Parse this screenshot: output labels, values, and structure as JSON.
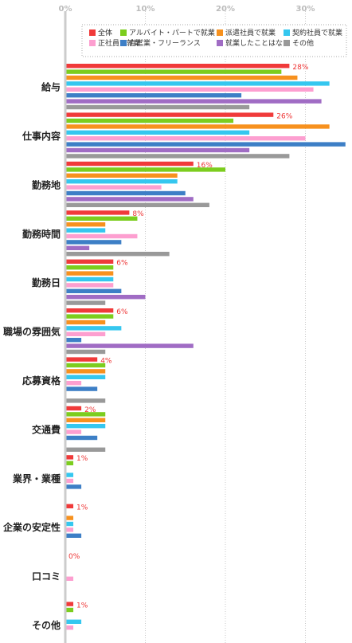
{
  "chart_data": {
    "type": "bar",
    "orientation": "horizontal",
    "title": "",
    "xlabel": "",
    "ylabel": "",
    "xlim": [
      0,
      35
    ],
    "ticks": [
      {
        "value": 0,
        "label": "0%"
      },
      {
        "value": 10,
        "label": "10%"
      },
      {
        "value": 20,
        "label": "20%"
      },
      {
        "value": 30,
        "label": "30%"
      }
    ],
    "grid": true,
    "legend_position": "top-right",
    "categories": [
      "給与",
      "仕事内容",
      "勤務地",
      "勤務時間",
      "勤務日",
      "職場の雰囲気",
      "応募資格",
      "交通費",
      "業界・業種",
      "企業の安定性",
      "口コミ",
      "その他"
    ],
    "data_labels": [
      "28%",
      "26%",
      "16%",
      "8%",
      "6%",
      "6%",
      "4%",
      "2%",
      "1%",
      "1%",
      "0%",
      "1%"
    ],
    "series": [
      {
        "name": "全体",
        "color": "#f03a3a",
        "values": [
          28,
          26,
          16,
          8,
          6,
          6,
          4,
          2,
          1,
          1,
          0,
          1
        ]
      },
      {
        "name": "アルバイト・パートで就業",
        "color": "#7ccd1e",
        "values": [
          27,
          21,
          20,
          9,
          6,
          6,
          5,
          5,
          1,
          0,
          0,
          1
        ]
      },
      {
        "name": "派遣社員で就業",
        "color": "#f7911e",
        "values": [
          29,
          33,
          14,
          5,
          6,
          5,
          5,
          5,
          0,
          1,
          0,
          0
        ]
      },
      {
        "name": "契約社員で就業",
        "color": "#35c7ef",
        "values": [
          33,
          23,
          14,
          5,
          6,
          7,
          5,
          5,
          1,
          1,
          0,
          2
        ]
      },
      {
        "name": "正社員で就業",
        "color": "#fd9fd0",
        "values": [
          31,
          30,
          12,
          9,
          6,
          5,
          2,
          2,
          1,
          1,
          1,
          1
        ]
      },
      {
        "name": "自営業・フリーランス",
        "color": "#3d7fc6",
        "values": [
          22,
          35,
          15,
          7,
          7,
          2,
          4,
          4,
          2,
          2,
          0,
          0
        ]
      },
      {
        "name": "就業したことはない",
        "color": "#a06cc4",
        "values": [
          32,
          23,
          16,
          3,
          10,
          16,
          0,
          0,
          0,
          0,
          0,
          0
        ]
      },
      {
        "name": "その他",
        "color": "#999999",
        "values": [
          23,
          28,
          18,
          13,
          5,
          5,
          5,
          5,
          0,
          0,
          0,
          3
        ]
      }
    ]
  }
}
